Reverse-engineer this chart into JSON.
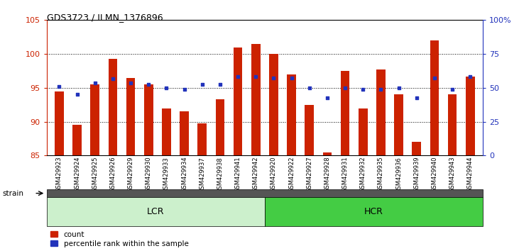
{
  "title": "GDS3723 / ILMN_1376896",
  "samples": [
    "GSM429923",
    "GSM429924",
    "GSM429925",
    "GSM429926",
    "GSM429929",
    "GSM429930",
    "GSM429933",
    "GSM429934",
    "GSM429937",
    "GSM429938",
    "GSM429941",
    "GSM429942",
    "GSM429920",
    "GSM429922",
    "GSM429927",
    "GSM429928",
    "GSM429931",
    "GSM429932",
    "GSM429935",
    "GSM429936",
    "GSM429939",
    "GSM429940",
    "GSM429943",
    "GSM429944"
  ],
  "red_values": [
    94.5,
    89.5,
    95.5,
    99.3,
    96.5,
    95.5,
    92.0,
    91.5,
    89.8,
    93.3,
    101.0,
    101.5,
    100.0,
    97.0,
    92.5,
    85.5,
    97.5,
    92.0,
    97.7,
    94.0,
    87.0,
    102.0,
    94.0,
    96.7
  ],
  "blue_values": [
    95.2,
    94.0,
    95.7,
    96.3,
    95.7,
    95.5,
    95.0,
    94.8,
    95.5,
    95.5,
    96.7,
    96.7,
    96.5,
    96.5,
    95.0,
    93.5,
    95.0,
    94.8,
    94.8,
    95.0,
    93.5,
    96.5,
    94.8,
    96.7
  ],
  "lcr_count": 12,
  "ylim": [
    85,
    105
  ],
  "y2lim": [
    0,
    100
  ],
  "y_ticks": [
    85,
    90,
    95,
    100,
    105
  ],
  "y2_ticks": [
    0,
    25,
    50,
    75,
    100
  ],
  "y2_tick_labels": [
    "0",
    "25",
    "50",
    "75",
    "100%"
  ],
  "bar_color": "#cc2200",
  "dot_color": "#2233bb",
  "axis_color_left": "#cc2200",
  "axis_color_right": "#2233bb",
  "legend_count_label": "count",
  "legend_pct_label": "percentile rank within the sample",
  "lcr_color": "#ccf0cc",
  "hcr_color": "#44cc44",
  "strain_label": "strain",
  "bar_width": 0.5
}
